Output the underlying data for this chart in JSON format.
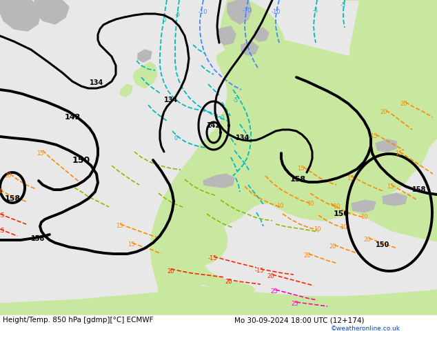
{
  "title_left": "Height/Temp. 850 hPa [gdmp][°C] ECMWF",
  "title_right": "Mo 30-09-2024 18:00 UTC (12+174)",
  "watermark": "©weatheronline.co.uk",
  "bg_ocean": "#e8e8e8",
  "bg_land": "#c8e8a0",
  "bg_land2": "#d8f0b0",
  "land_gray": "#b8b8b8",
  "footer_fontsize": 7.5,
  "watermark_color": "#0044cc",
  "black_color": "#000000",
  "cyan_color": "#00bbbb",
  "blue_color": "#4488ff",
  "orange_color": "#ff8800",
  "green_color": "#88bb00",
  "red_color": "#ff2200",
  "magenta_color": "#ff00bb"
}
